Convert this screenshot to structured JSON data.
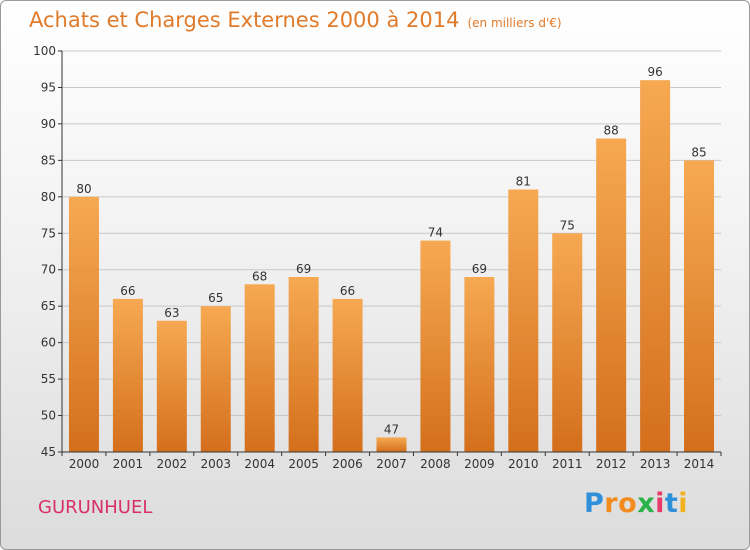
{
  "header": {
    "title": "Achats et Charges Externes 2000 à 2014",
    "subtitle": "(en milliers d'€)"
  },
  "footer": {
    "commune": "GURUNHUEL",
    "logo_letters": [
      {
        "char": "P",
        "color": "#2f8fd8"
      },
      {
        "char": "r",
        "color": "#f28c1e"
      },
      {
        "char": "o",
        "color": "#f28c1e"
      },
      {
        "char": "x",
        "color": "#2bb34b"
      },
      {
        "char": "i",
        "color": "#e83b6a"
      },
      {
        "char": "t",
        "color": "#2f8fd8"
      },
      {
        "char": "i",
        "color": "#f2b21e"
      }
    ]
  },
  "colors": {
    "bar_light": "#f6a952",
    "bar_dark": "#d46f1c",
    "axis": "#333333",
    "grid": "#c8c8c8",
    "title": "#e07b2b",
    "commune": "#d8306a"
  },
  "chart_data": {
    "type": "bar",
    "categories": [
      "2000",
      "2001",
      "2002",
      "2003",
      "2004",
      "2005",
      "2006",
      "2007",
      "2008",
      "2009",
      "2010",
      "2011",
      "2012",
      "2013",
      "2014"
    ],
    "values": [
      80,
      66,
      63,
      65,
      68,
      69,
      66,
      47,
      74,
      69,
      81,
      75,
      88,
      96,
      85
    ],
    "title": "Achats et Charges Externes 2000 à 2014",
    "subtitle": "(en milliers d'€)",
    "xlabel": "",
    "ylabel": "",
    "ylim": [
      45,
      100
    ],
    "yticks": [
      45,
      50,
      55,
      60,
      65,
      70,
      75,
      80,
      85,
      90,
      95,
      100
    ],
    "grid": true,
    "legend": "none"
  }
}
